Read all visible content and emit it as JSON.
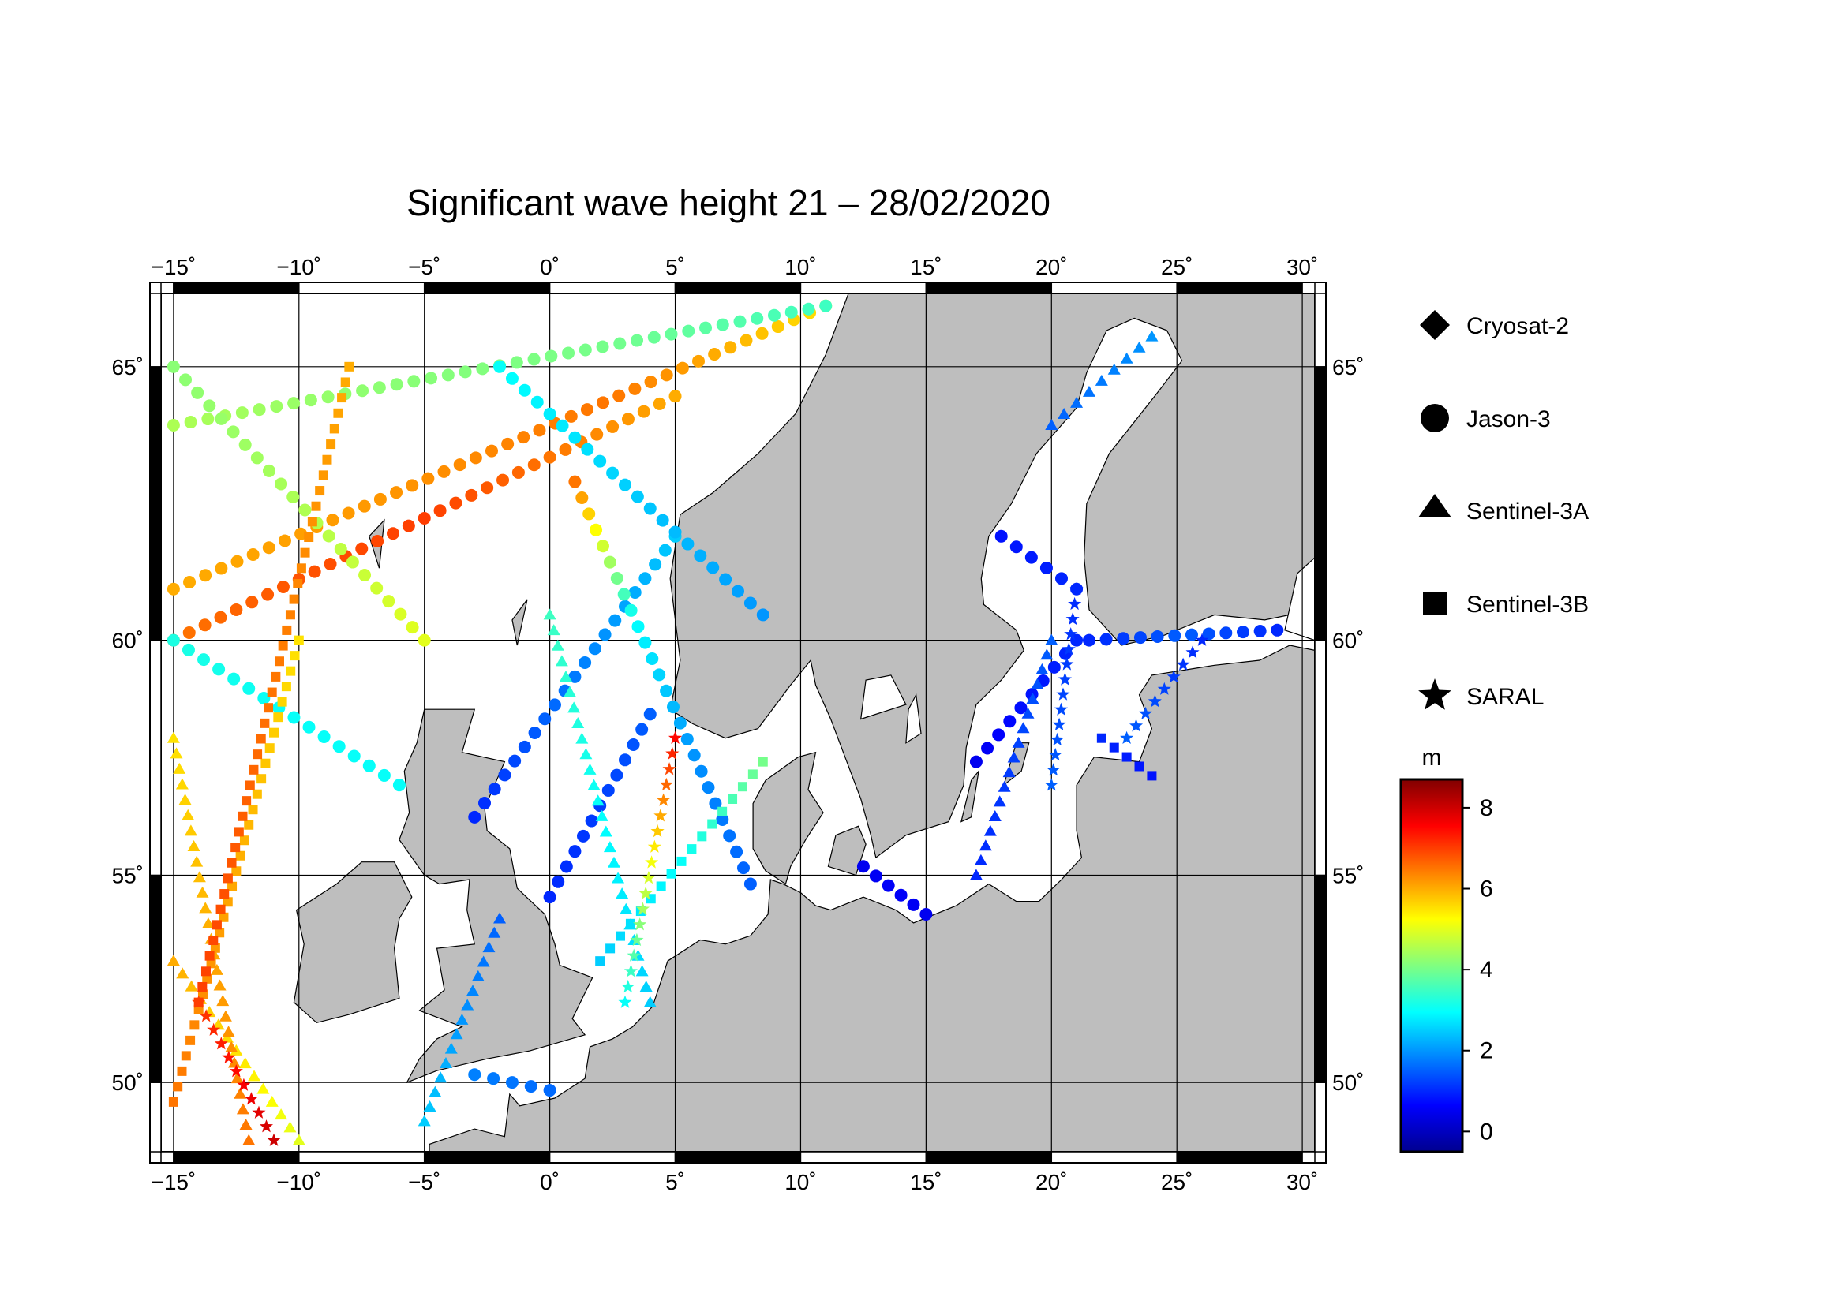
{
  "title": "Significant wave height 21 – 28/02/2020",
  "map": {
    "lon_range": [
      -15.5,
      30.5
    ],
    "lat_range": [
      48.2,
      66.2
    ],
    "lon_ticks": [
      -15,
      -10,
      -5,
      0,
      5,
      10,
      15,
      20,
      25,
      30
    ],
    "lat_ticks": [
      50,
      55,
      60,
      65
    ],
    "lon_tick_labels": [
      "−15˚",
      "−10˚",
      "−5˚",
      "0˚",
      "5˚",
      "10˚",
      "15˚",
      "20˚",
      "25˚",
      "30˚"
    ],
    "lat_tick_labels": [
      "50˚",
      "55˚",
      "60˚",
      "65˚"
    ],
    "land_color": "#bebebe",
    "sea_color": "#ffffff",
    "grid": true
  },
  "legend": {
    "items": [
      {
        "label": "Cryosat-2",
        "symbol": "diamond"
      },
      {
        "label": "Jason-3",
        "symbol": "circle"
      },
      {
        "label": "Sentinel-3A",
        "symbol": "triangle"
      },
      {
        "label": "Sentinel-3B",
        "symbol": "square"
      },
      {
        "label": "SARAL",
        "symbol": "star"
      }
    ]
  },
  "colorbar": {
    "unit": "m",
    "min": -0.5,
    "max": 8.7,
    "ticks": [
      0,
      2,
      4,
      6,
      8
    ],
    "tick_labels": [
      "0",
      "2",
      "4",
      "6",
      "8"
    ],
    "colormap": [
      "#00008f",
      "#0000ff",
      "#0080ff",
      "#00ffff",
      "#80ff80",
      "#ffff00",
      "#ff8000",
      "#ff0000",
      "#800000"
    ]
  },
  "chart_data": {
    "type": "scatter",
    "title": "Significant wave height 21 – 28/02/2020",
    "xlabel": "",
    "ylabel": "",
    "xlim": [
      -15.5,
      30.5
    ],
    "ylim": [
      48.2,
      66.2
    ],
    "value_unit": "m",
    "tracks": [
      {
        "satellite": "Jason-3",
        "from": [
          -15.0,
          60.0
        ],
        "to": [
          5.0,
          64.5
        ],
        "values": [
          6.5,
          6.8,
          7.0,
          6.5,
          6.0
        ]
      },
      {
        "satellite": "Jason-3",
        "from": [
          -15.0,
          61.0
        ],
        "to": [
          11.0,
          66.0
        ],
        "values": [
          6.0,
          6.2,
          6.5,
          5.5
        ]
      },
      {
        "satellite": "Jason-3",
        "from": [
          -15.0,
          64.0
        ],
        "to": [
          11.0,
          66.0
        ],
        "values": [
          4.5,
          4.2,
          4.0,
          3.5
        ]
      },
      {
        "satellite": "Jason-3",
        "from": [
          -15.0,
          65.0
        ],
        "to": [
          -5.0,
          60.0
        ],
        "values": [
          4.2,
          4.5,
          5.0
        ]
      },
      {
        "satellite": "Jason-3",
        "from": [
          -15.0,
          60.0
        ],
        "to": [
          -6.0,
          57.0
        ],
        "values": [
          3.2,
          3.0,
          3.0
        ]
      },
      {
        "satellite": "Jason-3",
        "from": [
          -3.0,
          56.3
        ],
        "to": [
          5.0,
          62.0
        ],
        "values": [
          1.0,
          1.5,
          2.0,
          2.5
        ]
      },
      {
        "satellite": "Jason-3",
        "from": [
          1.0,
          63.0
        ],
        "to": [
          8.0,
          54.8
        ],
        "values": [
          6.5,
          3.0,
          2.0,
          1.5
        ]
      },
      {
        "satellite": "Jason-3",
        "from": [
          -2.0,
          65.0
        ],
        "to": [
          8.5,
          60.5
        ],
        "values": [
          3.0,
          2.5,
          2.0
        ]
      },
      {
        "satellite": "Jason-3",
        "from": [
          0.0,
          54.5
        ],
        "to": [
          4.0,
          58.5
        ],
        "values": [
          1.0,
          1.2,
          1.5
        ]
      },
      {
        "satellite": "Jason-3",
        "from": [
          12.5,
          55.2
        ],
        "to": [
          15.0,
          54.1
        ],
        "values": [
          0.5,
          0.6,
          0.5
        ]
      },
      {
        "satellite": "Jason-3",
        "from": [
          17.0,
          57.5
        ],
        "to": [
          21.0,
          60.0
        ],
        "values": [
          0.5,
          0.8,
          1.0
        ]
      },
      {
        "satellite": "Jason-3",
        "from": [
          18.0,
          62.0
        ],
        "to": [
          21.0,
          61.0
        ],
        "values": [
          0.8,
          1.0
        ]
      },
      {
        "satellite": "Jason-3",
        "from": [
          21.5,
          60.0
        ],
        "to": [
          29.0,
          60.2
        ],
        "values": [
          1.0,
          1.5,
          1.0
        ]
      },
      {
        "satellite": "Jason-3",
        "from": [
          -3.0,
          50.2
        ],
        "to": [
          0.0,
          49.8
        ],
        "values": [
          1.8,
          1.6
        ]
      },
      {
        "satellite": "Sentinel-3A",
        "from": [
          -15.0,
          53.0
        ],
        "to": [
          -10.0,
          48.5
        ],
        "values": [
          6.0,
          5.5,
          5.0
        ]
      },
      {
        "satellite": "Sentinel-3A",
        "from": [
          -15.0,
          58.0
        ],
        "to": [
          -12.0,
          48.5
        ],
        "values": [
          5.5,
          6.0,
          6.5
        ]
      },
      {
        "satellite": "Sentinel-3A",
        "from": [
          -5.0,
          49.0
        ],
        "to": [
          -2.0,
          54.0
        ],
        "values": [
          2.5,
          2.0,
          1.5
        ]
      },
      {
        "satellite": "Sentinel-3A",
        "from": [
          0.0,
          60.5
        ],
        "to": [
          4.0,
          52.0
        ],
        "values": [
          3.5,
          3.0,
          2.5
        ]
      },
      {
        "satellite": "Sentinel-3A",
        "from": [
          17.0,
          55.0
        ],
        "to": [
          20.0,
          60.0
        ],
        "values": [
          1.0,
          1.2,
          1.5
        ]
      },
      {
        "satellite": "Sentinel-3A",
        "from": [
          20.0,
          64.0
        ],
        "to": [
          24.0,
          65.5
        ],
        "values": [
          1.5,
          2.0
        ]
      },
      {
        "satellite": "Sentinel-3B",
        "from": [
          -15.0,
          49.5
        ],
        "to": [
          -10.0,
          60.0
        ],
        "values": [
          6.5,
          6.0,
          5.5
        ]
      },
      {
        "satellite": "Sentinel-3B",
        "from": [
          -14.0,
          52.0
        ],
        "to": [
          -8.0,
          65.0
        ],
        "values": [
          7.0,
          6.5,
          6.0
        ]
      },
      {
        "satellite": "Sentinel-3B",
        "from": [
          2.0,
          53.0
        ],
        "to": [
          8.5,
          57.5
        ],
        "values": [
          2.5,
          3.0,
          4.0
        ]
      },
      {
        "satellite": "Sentinel-3B",
        "from": [
          22.0,
          58.0
        ],
        "to": [
          24.0,
          57.2
        ],
        "values": [
          1.0,
          0.8
        ]
      },
      {
        "satellite": "SARAL",
        "from": [
          -14.0,
          52.0
        ],
        "to": [
          -11.0,
          48.5
        ],
        "values": [
          7.0,
          7.5,
          8.0
        ]
      },
      {
        "satellite": "SARAL",
        "from": [
          3.0,
          52.0
        ],
        "to": [
          5.0,
          58.0
        ],
        "values": [
          3.0,
          5.0,
          7.5
        ]
      },
      {
        "satellite": "SARAL",
        "from": [
          20.0,
          57.0
        ],
        "to": [
          21.0,
          61.0
        ],
        "values": [
          1.5,
          1.0
        ]
      },
      {
        "satellite": "SARAL",
        "from": [
          23.0,
          58.0
        ],
        "to": [
          26.0,
          60.0
        ],
        "values": [
          1.5,
          1.0
        ]
      }
    ]
  }
}
